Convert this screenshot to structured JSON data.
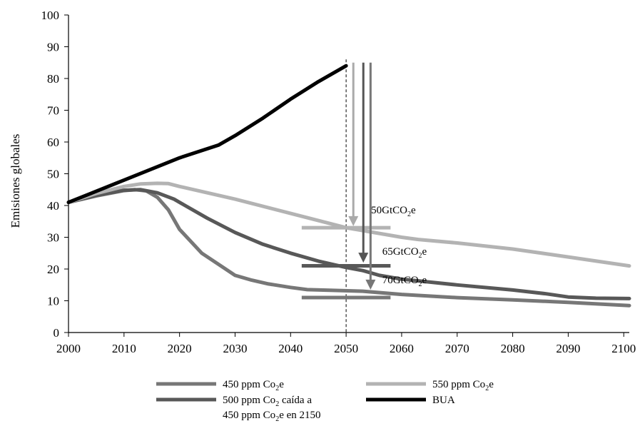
{
  "chart_data": {
    "type": "line",
    "ylabel": "Emisiones globales",
    "xlabel": "",
    "xlim": [
      2000,
      2101
    ],
    "ylim": [
      0,
      100
    ],
    "xticks": [
      2000,
      2010,
      2020,
      2030,
      2040,
      2050,
      2060,
      2070,
      2080,
      2090,
      2100
    ],
    "yticks": [
      0,
      10,
      20,
      30,
      40,
      50,
      60,
      70,
      80,
      90,
      100
    ],
    "grid": false,
    "legend_position": "bottom",
    "colors": {
      "bua": "#000000",
      "ppm550": "#b3b3b3",
      "ppm450": "#777777",
      "ppm500": "#585858",
      "arrow_light": "#aaaaaa",
      "arrow_dark": "#555555",
      "arrow_mid": "#777777"
    },
    "series": [
      {
        "key": "ppm450",
        "name": "450 ppm Co₂e",
        "x": [
          2000,
          2005,
          2010,
          2012,
          2014,
          2016,
          2018,
          2020,
          2024,
          2027,
          2030,
          2033,
          2036,
          2040,
          2043,
          2047,
          2053,
          2060,
          2070,
          2080,
          2090,
          2101
        ],
        "y": [
          41,
          43,
          44.7,
          45,
          44.6,
          42.6,
          38.6,
          32.5,
          25,
          21.5,
          18,
          16.5,
          15.3,
          14.2,
          13.5,
          13.3,
          13,
          12,
          11,
          10.3,
          9.5,
          8.5
        ]
      },
      {
        "key": "ppm500",
        "name": "500 ppm Co₂ caída a 450 ppm Co₂e en 2150",
        "x": [
          2000,
          2005,
          2010,
          2013,
          2016,
          2019,
          2021,
          2025,
          2030,
          2035,
          2040,
          2045,
          2050,
          2053,
          2056,
          2060,
          2070,
          2080,
          2086,
          2090,
          2095,
          2101
        ],
        "y": [
          41,
          43.2,
          44.8,
          45,
          44,
          42,
          40,
          36,
          31.5,
          27.8,
          25,
          22.5,
          20.5,
          19.5,
          18,
          16.8,
          15,
          13.4,
          12.2,
          11.2,
          10.8,
          10.7
        ]
      },
      {
        "key": "ppm550",
        "name": "550 ppm Co₂e",
        "x": [
          2000,
          2005,
          2010,
          2013,
          2016,
          2018,
          2020,
          2030,
          2040,
          2050,
          2060,
          2063,
          2070,
          2080,
          2090,
          2101
        ],
        "y": [
          41,
          43.8,
          46,
          46.8,
          47,
          46.9,
          46,
          42,
          37.5,
          33,
          30,
          29.3,
          28.2,
          26.3,
          23.8,
          21
        ]
      },
      {
        "key": "bua",
        "name": "BUA",
        "x": [
          2000,
          2010,
          2020,
          2027,
          2030,
          2035,
          2040,
          2045,
          2050
        ],
        "y": [
          41,
          48,
          55,
          59,
          62,
          67.5,
          73.5,
          79,
          84
        ]
      }
    ],
    "reference_line": {
      "x": 2050,
      "ymax": 86
    },
    "target_bars": [
      {
        "key": "ppm550",
        "y": 33,
        "x": [
          2042,
          2058
        ]
      },
      {
        "key": "ppm500",
        "y": 21,
        "x": [
          2042,
          2058
        ]
      },
      {
        "key": "ppm450",
        "y": 11,
        "x": [
          2042,
          2058
        ]
      }
    ],
    "arrows": [
      {
        "color_key": "arrow_light",
        "x": 2051.3,
        "y_from": 85,
        "y_to": 33.5
      },
      {
        "color_key": "arrow_dark",
        "x": 2053.1,
        "y_from": 85,
        "y_to": 22
      },
      {
        "color_key": "arrow_mid",
        "x": 2054.4,
        "y_from": 85,
        "y_to": 13.5
      }
    ],
    "annotations": [
      {
        "label": "50GtCO",
        "sub": "2",
        "tail": "e",
        "x": 2054.5,
        "y": 37.5
      },
      {
        "label": "65GtCO",
        "sub": "2",
        "tail": "e",
        "x": 2056.5,
        "y": 24.5
      },
      {
        "label": "70GtCO",
        "sub": "2",
        "tail": "e",
        "x": 2056.5,
        "y": 15.5
      }
    ],
    "legend": [
      {
        "key": "ppm450",
        "lines": [
          [
            "450 ppm Co",
            "2",
            "e"
          ]
        ]
      },
      {
        "key": "ppm550",
        "lines": [
          [
            "550 ppm Co",
            "2",
            "e"
          ]
        ]
      },
      {
        "key": "ppm500",
        "lines": [
          [
            "500 ppm Co",
            "2",
            " caída a"
          ],
          [
            "450 ppm Co",
            "2",
            "e en 2150"
          ]
        ]
      },
      {
        "key": "bua",
        "lines": [
          [
            "BUA",
            "",
            ""
          ]
        ]
      }
    ]
  }
}
